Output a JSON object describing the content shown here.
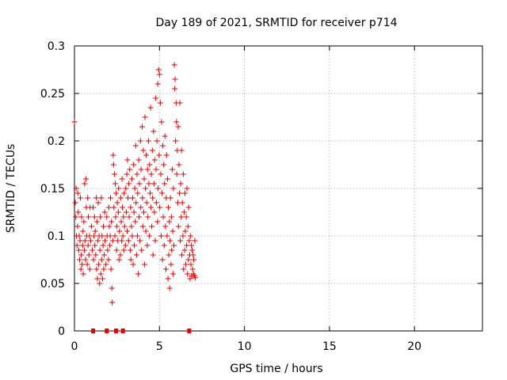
{
  "chart_data": {
    "type": "scatter",
    "title": "Day 189 of 2021, SRMTID for receiver p714",
    "xlabel": "GPS time / hours",
    "ylabel": "SRMTID / TECUs",
    "xlim": [
      0,
      24
    ],
    "ylim": [
      0,
      0.3
    ],
    "xticks": [
      0,
      5,
      10,
      15,
      20
    ],
    "xtick_labels": [
      "0",
      "5",
      "10",
      "15",
      "20"
    ],
    "yticks": [
      0,
      0.05,
      0.1,
      0.15,
      0.2,
      0.25,
      0.3
    ],
    "ytick_labels": [
      "0",
      "0.05",
      "0.1",
      "0.15",
      "0.2",
      "0.25",
      "0.3"
    ],
    "grid": true,
    "marker": "plus",
    "color": "#e00000",
    "series": [
      {
        "name": "SRMTID",
        "points": [
          [
            0.0,
            0.22
          ],
          [
            0.05,
            0.135
          ],
          [
            0.08,
            0.12
          ],
          [
            0.1,
            0.15
          ],
          [
            0.12,
            0.1
          ],
          [
            0.15,
            0.09
          ],
          [
            0.18,
            0.11
          ],
          [
            0.2,
            0.145
          ],
          [
            0.22,
            0.125
          ],
          [
            0.25,
            0.085
          ],
          [
            0.28,
            0.1
          ],
          [
            0.3,
            0.075
          ],
          [
            0.33,
            0.095
          ],
          [
            0.35,
            0.14
          ],
          [
            0.38,
            0.065
          ],
          [
            0.4,
            0.08
          ],
          [
            0.42,
            0.12
          ],
          [
            0.45,
            0.07
          ],
          [
            0.48,
            0.09
          ],
          [
            0.5,
            0.105
          ],
          [
            0.52,
            0.06
          ],
          [
            0.55,
            0.115
          ],
          [
            0.58,
            0.085
          ],
          [
            0.6,
            0.155
          ],
          [
            0.62,
            0.095
          ],
          [
            0.65,
            0.075
          ],
          [
            0.68,
            0.16
          ],
          [
            0.7,
            0.13
          ],
          [
            0.72,
            0.1
          ],
          [
            0.75,
            0.07
          ],
          [
            0.78,
            0.14
          ],
          [
            0.8,
            0.09
          ],
          [
            0.82,
            0.12
          ],
          [
            0.85,
            0.08
          ],
          [
            0.88,
            0.1
          ],
          [
            0.9,
            0.065
          ],
          [
            0.92,
            0.13
          ],
          [
            0.95,
            0.095
          ],
          [
            1.0,
            0.11
          ],
          [
            1.05,
            0.085
          ],
          [
            1.1,
            0.13
          ],
          [
            1.12,
            0.075
          ],
          [
            1.15,
            0.1
          ],
          [
            1.18,
            0.12
          ],
          [
            1.2,
            0.09
          ],
          [
            1.22,
            0.105
          ],
          [
            1.25,
            0.08
          ],
          [
            1.28,
            0.14
          ],
          [
            1.3,
            0.065
          ],
          [
            1.32,
            0.115
          ],
          [
            1.35,
            0.055
          ],
          [
            1.38,
            0.095
          ],
          [
            1.4,
            0.135
          ],
          [
            1.42,
            0.07
          ],
          [
            1.45,
            0.1
          ],
          [
            1.48,
            0.05
          ],
          [
            1.5,
            0.085
          ],
          [
            1.52,
            0.12
          ],
          [
            1.55,
            0.06
          ],
          [
            1.58,
            0.14
          ],
          [
            1.6,
            0.075
          ],
          [
            1.62,
            0.1
          ],
          [
            1.65,
            0.055
          ],
          [
            1.68,
            0.09
          ],
          [
            1.7,
            0.11
          ],
          [
            1.72,
            0.065
          ],
          [
            1.75,
            0.08
          ],
          [
            1.78,
            0.125
          ],
          [
            1.8,
            0.095
          ],
          [
            1.85,
            0.07
          ],
          [
            1.9,
            0.12
          ],
          [
            1.92,
            0.1
          ],
          [
            1.95,
            0.085
          ],
          [
            2.0,
            0.075
          ],
          [
            2.02,
            0.13
          ],
          [
            2.05,
            0.11
          ],
          [
            2.08,
            0.09
          ],
          [
            2.1,
            0.1
          ],
          [
            2.12,
            0.14
          ],
          [
            2.15,
            0.065
          ],
          [
            2.18,
            0.115
          ],
          [
            2.2,
            0.045
          ],
          [
            2.22,
            0.03
          ],
          [
            2.25,
            0.095
          ],
          [
            2.28,
            0.185
          ],
          [
            2.3,
            0.175
          ],
          [
            2.32,
            0.13
          ],
          [
            2.35,
            0.165
          ],
          [
            2.38,
            0.1
          ],
          [
            2.4,
            0.155
          ],
          [
            2.42,
            0.12
          ],
          [
            2.45,
            0.145
          ],
          [
            2.48,
            0.085
          ],
          [
            2.5,
            0.11
          ],
          [
            2.52,
            0.135
          ],
          [
            2.55,
            0.095
          ],
          [
            2.58,
            0.125
          ],
          [
            2.6,
            0.15
          ],
          [
            2.62,
            0.075
          ],
          [
            2.65,
            0.105
          ],
          [
            2.7,
            0.08
          ],
          [
            2.72,
            0.14
          ],
          [
            2.75,
            0.115
          ],
          [
            2.78,
            0.095
          ],
          [
            2.8,
            0.16
          ],
          [
            2.82,
            0.13
          ],
          [
            2.85,
            0.1
          ],
          [
            2.88,
            0.12
          ],
          [
            2.9,
            0.085
          ],
          [
            2.92,
            0.145
          ],
          [
            2.95,
            0.11
          ],
          [
            3.0,
            0.09
          ],
          [
            3.02,
            0.15
          ],
          [
            3.05,
            0.125
          ],
          [
            3.08,
            0.165
          ],
          [
            3.1,
            0.105
          ],
          [
            3.12,
            0.18
          ],
          [
            3.15,
            0.14
          ],
          [
            3.18,
            0.095
          ],
          [
            3.2,
            0.155
          ],
          [
            3.22,
            0.12
          ],
          [
            3.25,
            0.17
          ],
          [
            3.28,
            0.085
          ],
          [
            3.3,
            0.13
          ],
          [
            3.32,
            0.075
          ],
          [
            3.35,
            0.11
          ],
          [
            3.38,
            0.16
          ],
          [
            3.4,
            0.1
          ],
          [
            3.42,
            0.14
          ],
          [
            3.45,
            0.07
          ],
          [
            3.48,
            0.175
          ],
          [
            3.5,
            0.125
          ],
          [
            3.52,
            0.09
          ],
          [
            3.55,
            0.15
          ],
          [
            3.58,
            0.115
          ],
          [
            3.6,
            0.195
          ],
          [
            3.62,
            0.135
          ],
          [
            3.65,
            0.08
          ],
          [
            3.68,
            0.165
          ],
          [
            3.7,
            0.1
          ],
          [
            3.72,
            0.145
          ],
          [
            3.75,
            0.06
          ],
          [
            3.78,
            0.18
          ],
          [
            3.8,
            0.12
          ],
          [
            3.82,
            0.155
          ],
          [
            3.85,
            0.095
          ],
          [
            3.88,
            0.2
          ],
          [
            3.9,
            0.13
          ],
          [
            3.92,
            0.17
          ],
          [
            3.95,
            0.085
          ],
          [
            3.98,
            0.215
          ],
          [
            4.0,
            0.14
          ],
          [
            4.02,
            0.11
          ],
          [
            4.05,
            0.19
          ],
          [
            4.08,
            0.125
          ],
          [
            4.1,
            0.16
          ],
          [
            4.12,
            0.07
          ],
          [
            4.15,
            0.225
          ],
          [
            4.18,
            0.15
          ],
          [
            4.2,
            0.105
          ],
          [
            4.22,
            0.185
          ],
          [
            4.25,
            0.135
          ],
          [
            4.28,
            0.09
          ],
          [
            4.3,
            0.17
          ],
          [
            4.32,
            0.12
          ],
          [
            4.35,
            0.2
          ],
          [
            4.38,
            0.155
          ],
          [
            4.4,
            0.1
          ],
          [
            4.42,
            0.175
          ],
          [
            4.45,
            0.145
          ],
          [
            4.48,
            0.235
          ],
          [
            4.5,
            0.13
          ],
          [
            4.52,
            0.165
          ],
          [
            4.55,
            0.11
          ],
          [
            4.58,
            0.19
          ],
          [
            4.6,
            0.14
          ],
          [
            4.62,
            0.08
          ],
          [
            4.65,
            0.21
          ],
          [
            4.68,
            0.155
          ],
          [
            4.7,
            0.125
          ],
          [
            4.72,
            0.18
          ],
          [
            4.75,
            0.095
          ],
          [
            4.78,
            0.245
          ],
          [
            4.8,
            0.17
          ],
          [
            4.82,
            0.135
          ],
          [
            4.85,
            0.2
          ],
          [
            4.88,
            0.115
          ],
          [
            4.9,
            0.26
          ],
          [
            4.92,
            0.15
          ],
          [
            4.95,
            0.275
          ],
          [
            4.98,
            0.185
          ],
          [
            5.0,
            0.27
          ],
          [
            5.02,
            0.13
          ],
          [
            5.05,
            0.24
          ],
          [
            5.08,
            0.165
          ],
          [
            5.1,
            0.1
          ],
          [
            5.12,
            0.22
          ],
          [
            5.15,
            0.145
          ],
          [
            5.18,
            0.075
          ],
          [
            5.2,
            0.195
          ],
          [
            5.22,
            0.12
          ],
          [
            5.25,
            0.175
          ],
          [
            5.28,
            0.09
          ],
          [
            5.3,
            0.155
          ],
          [
            5.32,
            0.205
          ],
          [
            5.35,
            0.11
          ],
          [
            5.38,
            0.065
          ],
          [
            5.4,
            0.14
          ],
          [
            5.42,
            0.185
          ],
          [
            5.45,
            0.1
          ],
          [
            5.48,
            0.16
          ],
          [
            5.5,
            0.055
          ],
          [
            5.52,
            0.13
          ],
          [
            5.55,
            0.08
          ],
          [
            5.58,
            0.115
          ],
          [
            5.6,
            0.045
          ],
          [
            5.62,
            0.095
          ],
          [
            5.65,
            0.14
          ],
          [
            5.68,
            0.07
          ],
          [
            5.7,
            0.12
          ],
          [
            5.72,
            0.085
          ],
          [
            5.75,
            0.17
          ],
          [
            5.78,
            0.105
          ],
          [
            5.8,
            0.06
          ],
          [
            5.82,
            0.15
          ],
          [
            5.85,
            0.09
          ],
          [
            5.88,
            0.28
          ],
          [
            5.9,
            0.255
          ],
          [
            5.92,
            0.265
          ],
          [
            5.95,
            0.2
          ],
          [
            5.98,
            0.24
          ],
          [
            6.0,
            0.22
          ],
          [
            6.02,
            0.165
          ],
          [
            6.05,
            0.19
          ],
          [
            6.08,
            0.135
          ],
          [
            6.1,
            0.215
          ],
          [
            6.12,
            0.11
          ],
          [
            6.15,
            0.175
          ],
          [
            6.18,
            0.145
          ],
          [
            6.2,
            0.24
          ],
          [
            6.22,
            0.095
          ],
          [
            6.25,
            0.155
          ],
          [
            6.28,
            0.12
          ],
          [
            6.3,
            0.19
          ],
          [
            6.32,
            0.08
          ],
          [
            6.35,
            0.135
          ],
          [
            6.38,
            0.1
          ],
          [
            6.4,
            0.165
          ],
          [
            6.42,
            0.065
          ],
          [
            6.45,
            0.125
          ],
          [
            6.48,
            0.085
          ],
          [
            6.5,
            0.145
          ],
          [
            6.52,
            0.105
          ],
          [
            6.55,
            0.07
          ],
          [
            6.58,
            0.12
          ],
          [
            6.6,
            0.09
          ],
          [
            6.62,
            0.15
          ],
          [
            6.65,
            0.06
          ],
          [
            6.68,
            0.11
          ],
          [
            6.7,
            0.075
          ],
          [
            6.72,
            0.13
          ],
          [
            6.75,
            0.095
          ],
          [
            6.78,
            0.08
          ],
          [
            6.8,
            0.055
          ],
          [
            6.82,
            0.1
          ],
          [
            6.85,
            0.07
          ],
          [
            6.88,
            0.09
          ],
          [
            6.9,
            0.058
          ],
          [
            6.92,
            0.085
          ],
          [
            6.95,
            0.065
          ],
          [
            6.98,
            0.08
          ],
          [
            7.0,
            0.06
          ],
          [
            7.02,
            0.075
          ],
          [
            7.05,
            0.058
          ],
          [
            7.08,
            0.095
          ],
          [
            7.1,
            0.056
          ]
        ]
      },
      {
        "name": "zero markers",
        "marker": "square",
        "points": [
          [
            1.1,
            0.0
          ],
          [
            1.9,
            0.0
          ],
          [
            2.45,
            0.0
          ],
          [
            2.85,
            0.0
          ],
          [
            6.75,
            0.0
          ]
        ]
      }
    ]
  }
}
